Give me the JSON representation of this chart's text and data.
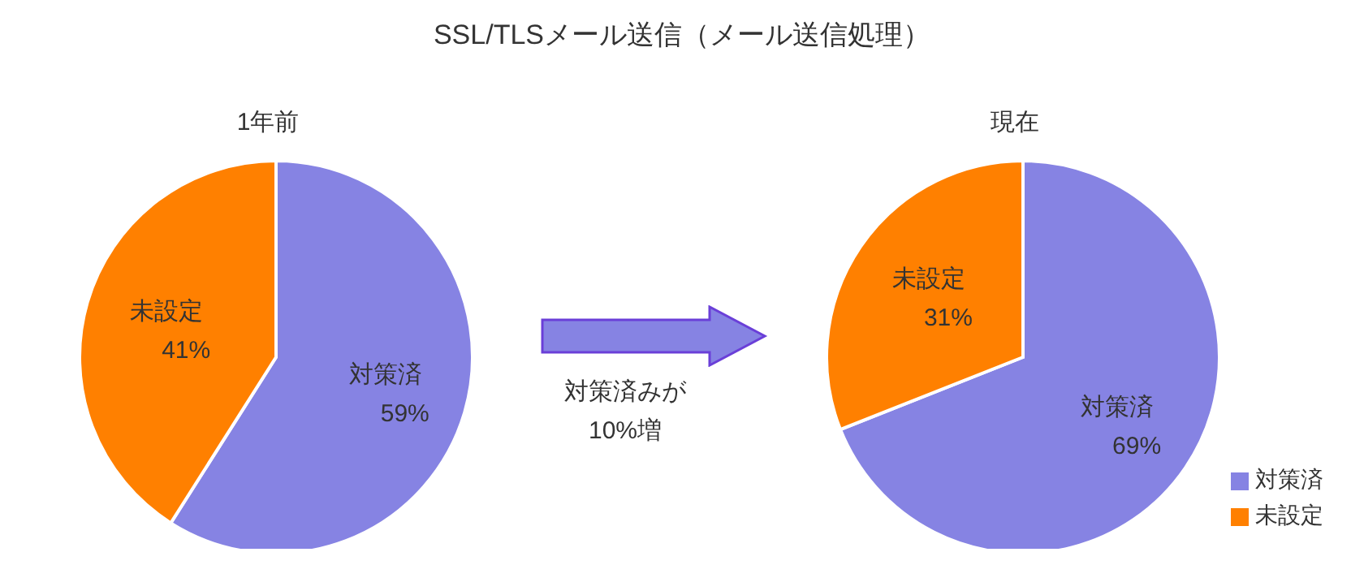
{
  "chart_data": [
    {
      "type": "pie",
      "title": "SSL/TLSメール送信（メール送信処理）",
      "subtitle": "1年前",
      "categories": [
        "対策済",
        "未設定"
      ],
      "values": [
        59,
        41
      ],
      "colors": [
        "#8683e3",
        "#ff8000"
      ],
      "value_labels": [
        "59%",
        "41%"
      ],
      "annotations": [
        "対策済みが\n10%増"
      ]
    },
    {
      "type": "pie",
      "subtitle": "現在",
      "categories": [
        "対策済",
        "未設定"
      ],
      "values": [
        69,
        31
      ],
      "colors": [
        "#8683e3",
        "#ff8000"
      ],
      "value_labels": [
        "69%",
        "31%"
      ],
      "legend": "bottom right"
    }
  ]
}
